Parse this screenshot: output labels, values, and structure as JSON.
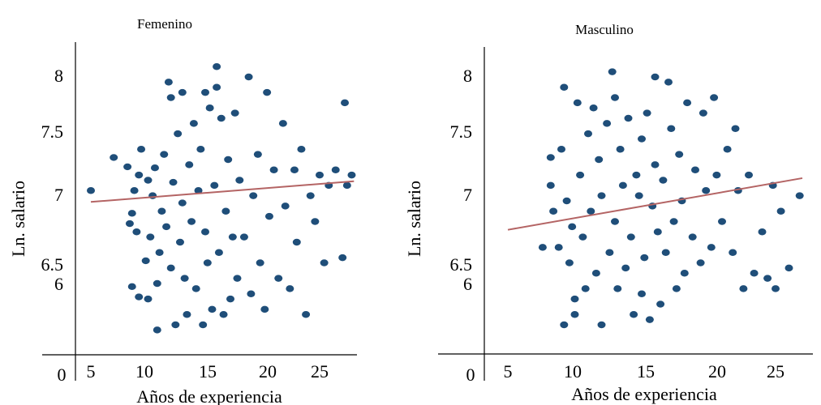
{
  "colors": {
    "points": "#1f4e79",
    "trend": "#b46464",
    "axis": "#000000",
    "background": "#ffffff"
  },
  "chart_data": [
    {
      "type": "scatter",
      "title": "Femenino",
      "xlabel": "Años de experiencia",
      "ylabel": "Ln. salario",
      "origin_label": "0",
      "xticks": [
        "5",
        "10",
        "15",
        "20",
        "25"
      ],
      "yticks": [
        "6",
        "6.5",
        "7",
        "7.5",
        "8"
      ],
      "xlim": [
        4,
        29
      ],
      "ylim": [
        5.3,
        8.3
      ],
      "grid": false,
      "trend": {
        "x1": 5,
        "y1": 6.79,
        "x2": 28,
        "y2": 6.99
      },
      "points": [
        [
          5,
          6.9
        ],
        [
          7,
          7.22
        ],
        [
          8.2,
          7.13
        ],
        [
          8.4,
          6.58
        ],
        [
          8.6,
          6.68
        ],
        [
          8.6,
          5.97
        ],
        [
          9,
          6.5
        ],
        [
          9.2,
          5.87
        ],
        [
          8.8,
          6.9
        ],
        [
          9.2,
          7.05
        ],
        [
          9.4,
          7.3
        ],
        [
          10,
          7.0
        ],
        [
          9.8,
          6.22
        ],
        [
          10,
          5.85
        ],
        [
          10.2,
          6.45
        ],
        [
          10.4,
          6.85
        ],
        [
          10.6,
          7.12
        ],
        [
          10.8,
          6.0
        ],
        [
          10.8,
          5.55
        ],
        [
          11,
          6.3
        ],
        [
          11.2,
          6.7
        ],
        [
          11.4,
          7.25
        ],
        [
          11.6,
          6.55
        ],
        [
          11.8,
          7.95
        ],
        [
          12,
          7.8
        ],
        [
          12,
          6.15
        ],
        [
          12.2,
          6.98
        ],
        [
          12.4,
          5.6
        ],
        [
          12.6,
          7.45
        ],
        [
          12.8,
          6.4
        ],
        [
          13,
          7.85
        ],
        [
          13,
          6.78
        ],
        [
          13.2,
          6.05
        ],
        [
          13.4,
          5.7
        ],
        [
          13.6,
          7.15
        ],
        [
          13.8,
          6.6
        ],
        [
          14,
          7.55
        ],
        [
          14.2,
          5.95
        ],
        [
          14.4,
          6.9
        ],
        [
          14.6,
          7.3
        ],
        [
          14.8,
          5.6
        ],
        [
          15,
          7.85
        ],
        [
          15,
          6.5
        ],
        [
          15.2,
          6.2
        ],
        [
          15.4,
          7.7
        ],
        [
          15.6,
          5.75
        ],
        [
          15.8,
          6.95
        ],
        [
          16,
          8.1
        ],
        [
          16,
          7.9
        ],
        [
          16.2,
          6.3
        ],
        [
          16.4,
          7.6
        ],
        [
          16.6,
          5.7
        ],
        [
          16.8,
          6.7
        ],
        [
          17,
          7.2
        ],
        [
          17.2,
          5.85
        ],
        [
          17.4,
          6.45
        ],
        [
          17.6,
          7.65
        ],
        [
          17.8,
          6.05
        ],
        [
          18,
          7.0
        ],
        [
          18.4,
          6.45
        ],
        [
          18.8,
          8.0
        ],
        [
          19,
          5.9
        ],
        [
          19.2,
          6.85
        ],
        [
          19.6,
          7.25
        ],
        [
          19.8,
          6.2
        ],
        [
          20.2,
          5.75
        ],
        [
          20.4,
          7.85
        ],
        [
          20.6,
          6.65
        ],
        [
          21,
          7.1
        ],
        [
          21.4,
          6.05
        ],
        [
          21.8,
          7.55
        ],
        [
          22,
          6.75
        ],
        [
          22.4,
          5.95
        ],
        [
          22.8,
          7.1
        ],
        [
          23,
          6.4
        ],
        [
          23.4,
          7.3
        ],
        [
          23.8,
          5.7
        ],
        [
          24.2,
          6.85
        ],
        [
          24.6,
          6.6
        ],
        [
          25,
          7.05
        ],
        [
          25.4,
          6.2
        ],
        [
          25.8,
          6.95
        ],
        [
          26.4,
          7.1
        ],
        [
          27,
          6.25
        ],
        [
          27.4,
          6.95
        ],
        [
          27.8,
          7.05
        ],
        [
          27.2,
          7.75
        ]
      ]
    },
    {
      "type": "scatter",
      "title": "Masculino",
      "xlabel": "Años de experiencia",
      "ylabel": "Ln. salario",
      "origin_label": "0",
      "xticks": [
        "5",
        "10",
        "15",
        "20",
        "25"
      ],
      "yticks": [
        "6",
        "6.5",
        "7",
        "7.5",
        "8"
      ],
      "xlim": [
        4,
        29
      ],
      "ylim": [
        5.3,
        8.3
      ],
      "grid": false,
      "trend": {
        "x1": 5,
        "y1": 6.52,
        "x2": 27,
        "y2": 7.02
      },
      "points": [
        [
          7.6,
          6.35
        ],
        [
          8.2,
          7.22
        ],
        [
          8.2,
          6.95
        ],
        [
          8.4,
          6.7
        ],
        [
          9,
          7.3
        ],
        [
          8.8,
          6.35
        ],
        [
          9.2,
          5.6
        ],
        [
          9.2,
          7.9
        ],
        [
          9.4,
          6.8
        ],
        [
          9.6,
          6.2
        ],
        [
          9.8,
          6.55
        ],
        [
          10,
          5.85
        ],
        [
          10,
          5.7
        ],
        [
          10.2,
          7.75
        ],
        [
          10.4,
          7.05
        ],
        [
          10.6,
          6.45
        ],
        [
          10.8,
          5.95
        ],
        [
          11,
          7.45
        ],
        [
          11.2,
          6.7
        ],
        [
          11.4,
          7.7
        ],
        [
          11.6,
          6.1
        ],
        [
          11.8,
          7.2
        ],
        [
          12,
          5.6
        ],
        [
          12,
          6.85
        ],
        [
          12.4,
          7.55
        ],
        [
          12.6,
          6.3
        ],
        [
          12.8,
          8.05
        ],
        [
          13,
          7.8
        ],
        [
          13,
          6.6
        ],
        [
          13.2,
          5.95
        ],
        [
          13.4,
          7.3
        ],
        [
          13.6,
          6.95
        ],
        [
          13.8,
          6.15
        ],
        [
          14,
          7.6
        ],
        [
          14.2,
          6.45
        ],
        [
          14.4,
          5.7
        ],
        [
          14.6,
          7.05
        ],
        [
          14.8,
          6.85
        ],
        [
          15,
          5.9
        ],
        [
          15,
          7.4
        ],
        [
          15.2,
          6.25
        ],
        [
          15.4,
          7.65
        ],
        [
          15.6,
          5.65
        ],
        [
          15.8,
          6.75
        ],
        [
          16,
          8.0
        ],
        [
          16,
          7.15
        ],
        [
          16.2,
          6.5
        ],
        [
          16.4,
          5.8
        ],
        [
          16.6,
          7.0
        ],
        [
          16.8,
          6.3
        ],
        [
          17,
          7.95
        ],
        [
          17.2,
          7.5
        ],
        [
          17.4,
          6.6
        ],
        [
          17.6,
          5.95
        ],
        [
          17.8,
          7.25
        ],
        [
          18,
          6.8
        ],
        [
          18.2,
          6.1
        ],
        [
          18.4,
          7.75
        ],
        [
          18.8,
          6.45
        ],
        [
          19,
          7.1
        ],
        [
          19.4,
          6.2
        ],
        [
          19.6,
          7.65
        ],
        [
          19.8,
          6.9
        ],
        [
          20.2,
          6.35
        ],
        [
          20.4,
          7.8
        ],
        [
          20.6,
          7.05
        ],
        [
          21,
          6.6
        ],
        [
          21.4,
          7.3
        ],
        [
          21.8,
          6.3
        ],
        [
          22,
          7.5
        ],
        [
          22.2,
          6.9
        ],
        [
          22.6,
          5.95
        ],
        [
          23,
          7.05
        ],
        [
          23.4,
          6.1
        ],
        [
          24,
          6.5
        ],
        [
          24.4,
          6.05
        ],
        [
          24.8,
          6.95
        ],
        [
          25,
          5.95
        ],
        [
          25.4,
          6.7
        ],
        [
          26,
          6.15
        ],
        [
          26.8,
          6.85
        ]
      ]
    }
  ]
}
